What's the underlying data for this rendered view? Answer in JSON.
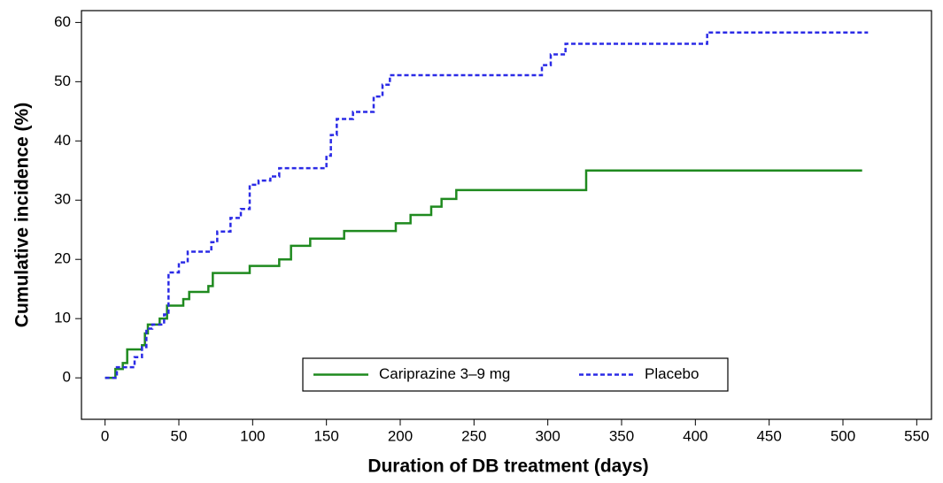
{
  "chart_data": {
    "type": "line",
    "xlabel": "Duration of DB treatment (days)",
    "ylabel": "Cumulative incidence (%)",
    "xlim": [
      -16,
      560
    ],
    "ylim": [
      -7,
      62
    ],
    "xticks": [
      0,
      50,
      100,
      150,
      200,
      250,
      300,
      350,
      400,
      450,
      500,
      550
    ],
    "yticks": [
      0,
      10,
      20,
      30,
      40,
      50,
      60
    ],
    "grid": false,
    "legend": "lower center",
    "series": [
      {
        "name": "Cariprazine 3–9 mg",
        "color": "#1f8a1f",
        "dash": false,
        "x": [
          0,
          7,
          7,
          12,
          12,
          15,
          15,
          25,
          25,
          27,
          27,
          29,
          29,
          37,
          37,
          42,
          42,
          53,
          53,
          57,
          57,
          70,
          70,
          73,
          73,
          98,
          98,
          118,
          118,
          126,
          126,
          139,
          139,
          162,
          162,
          197,
          197,
          207,
          207,
          221,
          221,
          228,
          228,
          238,
          238,
          326,
          326,
          513
        ],
        "values": [
          0,
          0,
          1.5,
          1.5,
          2.5,
          2.5,
          4.8,
          4.8,
          5.5,
          5.5,
          7.5,
          7.5,
          9,
          9,
          10,
          10,
          12.2,
          12.2,
          13.3,
          13.3,
          14.5,
          14.5,
          15.5,
          15.5,
          17.7,
          17.7,
          18.9,
          18.9,
          20,
          20,
          22.3,
          22.3,
          23.5,
          23.5,
          24.8,
          24.8,
          26.1,
          26.1,
          27.5,
          27.5,
          28.9,
          28.9,
          30.2,
          30.2,
          31.7,
          31.7,
          35,
          35
        ]
      },
      {
        "name": "Placebo",
        "color": "#2b2be6",
        "dash": true,
        "x": [
          0,
          8,
          8,
          20,
          20,
          25,
          25,
          28,
          28,
          32,
          32,
          40,
          40,
          43,
          43,
          50,
          50,
          56,
          56,
          72,
          72,
          76,
          76,
          85,
          85,
          92,
          92,
          98,
          98,
          104,
          104,
          112,
          112,
          118,
          118,
          150,
          150,
          153,
          153,
          157,
          157,
          168,
          168,
          182,
          182,
          188,
          188,
          193,
          193,
          296,
          296,
          302,
          302,
          312,
          312,
          408,
          408,
          517
        ],
        "values": [
          0,
          0,
          1.8,
          1.8,
          3.5,
          3.5,
          5.2,
          5.2,
          8.3,
          8.3,
          9,
          9,
          10.7,
          10.7,
          17.8,
          17.8,
          19.5,
          19.5,
          21.3,
          21.3,
          22.9,
          22.9,
          24.7,
          24.7,
          27,
          27,
          28.5,
          28.5,
          32.6,
          32.6,
          33.3,
          33.3,
          34,
          34,
          35.4,
          35.4,
          37.5,
          37.5,
          41,
          41,
          43.7,
          43.7,
          44.9,
          44.9,
          47.5,
          47.5,
          49.5,
          49.5,
          51.1,
          51.1,
          52.8,
          52.8,
          54.6,
          54.6,
          56.4,
          56.4,
          58.3,
          58.3
        ]
      }
    ]
  }
}
